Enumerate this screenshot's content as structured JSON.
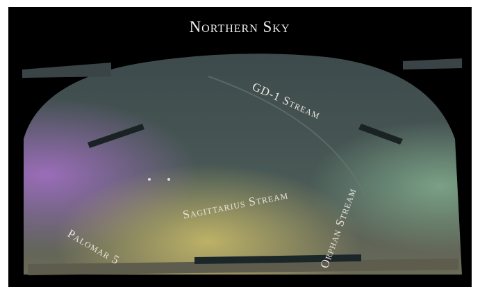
{
  "title": "Northern Sky",
  "labels": [
    "GD-1 Stream",
    "Sagittarius Stream",
    "Orphan Stream",
    "Palomar 5"
  ]
}
